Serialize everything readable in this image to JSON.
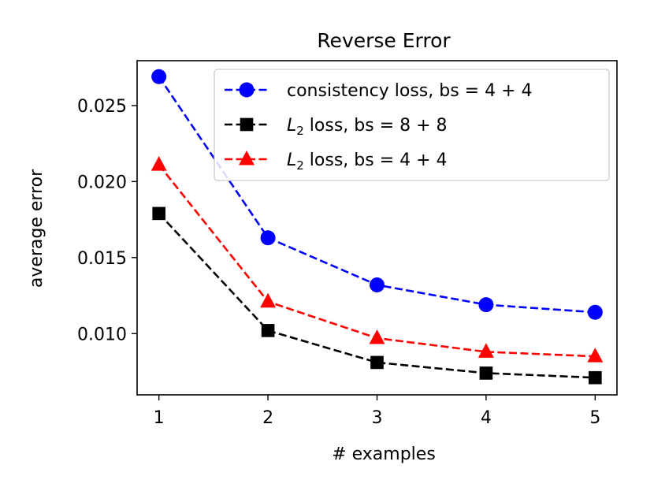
{
  "chart_data": {
    "type": "line",
    "title": "Reverse Error",
    "xlabel": "# examples",
    "ylabel": "average error",
    "x": [
      1,
      2,
      3,
      4,
      5
    ],
    "xticks": [
      "1",
      "2",
      "3",
      "4",
      "5"
    ],
    "yticks": [
      {
        "value": 0.01,
        "label": "0.010"
      },
      {
        "value": 0.015,
        "label": "0.015"
      },
      {
        "value": 0.02,
        "label": "0.020"
      },
      {
        "value": 0.025,
        "label": "0.025"
      }
    ],
    "xlim": [
      0.8,
      5.2
    ],
    "ylim": [
      0.00597,
      0.02795
    ],
    "grid": false,
    "legend_position": "upper right",
    "series": [
      {
        "name": "consistency loss, bs = 4 + 4",
        "legend_main": "",
        "legend_sub": "",
        "legend_rest": "consistency loss, bs = 4 + 4",
        "color": "#0000ff",
        "marker": "circle",
        "values": [
          0.0269,
          0.0163,
          0.0132,
          0.0119,
          0.0114
        ]
      },
      {
        "name": "L2 loss, bs = 8 + 8",
        "legend_main": "L",
        "legend_sub": "2",
        "legend_rest": " loss, bs = 8 + 8",
        "color": "#000000",
        "marker": "square",
        "values": [
          0.0179,
          0.0102,
          0.0081,
          0.0074,
          0.0071
        ]
      },
      {
        "name": "L2 loss, bs = 4 + 4",
        "legend_main": "L",
        "legend_sub": "2",
        "legend_rest": " loss, bs = 4 + 4",
        "color": "#ff0000",
        "marker": "triangle",
        "values": [
          0.0211,
          0.0121,
          0.0097,
          0.0088,
          0.0085
        ]
      }
    ]
  }
}
